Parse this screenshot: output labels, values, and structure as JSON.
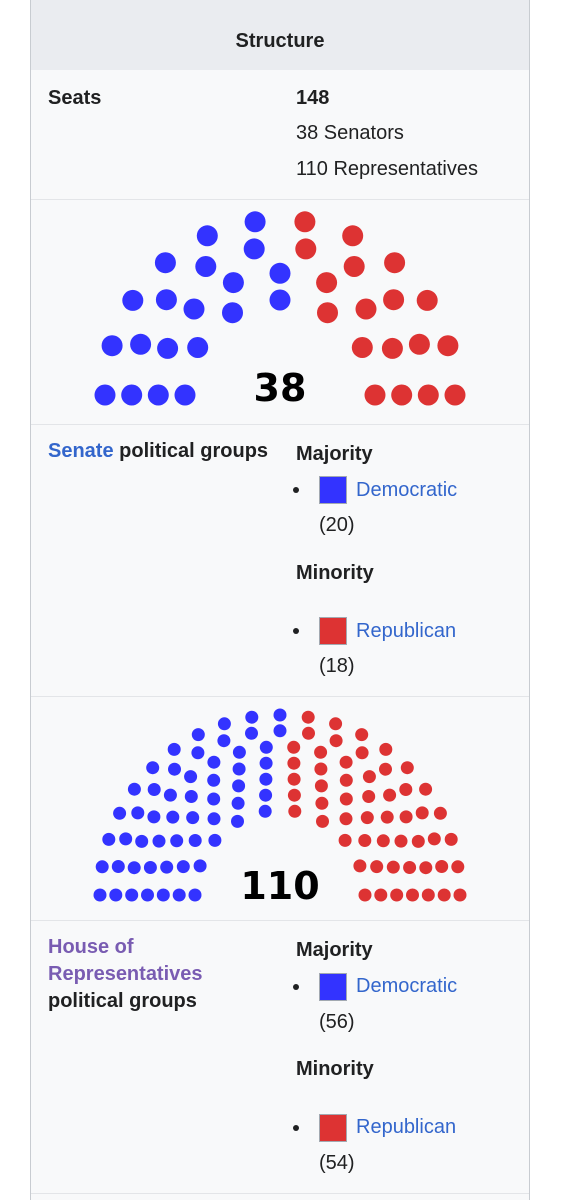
{
  "structure": {
    "header": "Structure",
    "seats_label": "Seats",
    "seats_total": "148",
    "seats_senators": "38 Senators",
    "seats_representatives": "110 Representatives"
  },
  "senate": {
    "title_link": "Senate",
    "title_rest": " political groups",
    "majority_label": "Majority",
    "majority_party": "Democratic",
    "majority_count": "(20)",
    "minority_label": "Minority",
    "minority_party": "Republican",
    "minority_count": "(18)"
  },
  "house": {
    "title_link_line1": "House of",
    "title_link_line2": "Representatives",
    "title_rest": "political groups",
    "majority_label": "Majority",
    "majority_party": "Democratic",
    "majority_count": "(56)",
    "minority_label": "Minority",
    "minority_party": "Republican",
    "minority_count": "(54)"
  },
  "colors": {
    "democratic": "#3333ff",
    "republican": "#dd3333"
  },
  "chart_data": [
    {
      "type": "parliament",
      "total": "38",
      "series": [
        {
          "name": "Democratic",
          "values": [
            20
          ]
        },
        {
          "name": "Republican",
          "values": [
            18
          ]
        }
      ]
    },
    {
      "type": "parliament",
      "total": "110",
      "series": [
        {
          "name": "Democratic",
          "values": [
            56
          ]
        },
        {
          "name": "Republican",
          "values": [
            54
          ]
        }
      ]
    }
  ]
}
